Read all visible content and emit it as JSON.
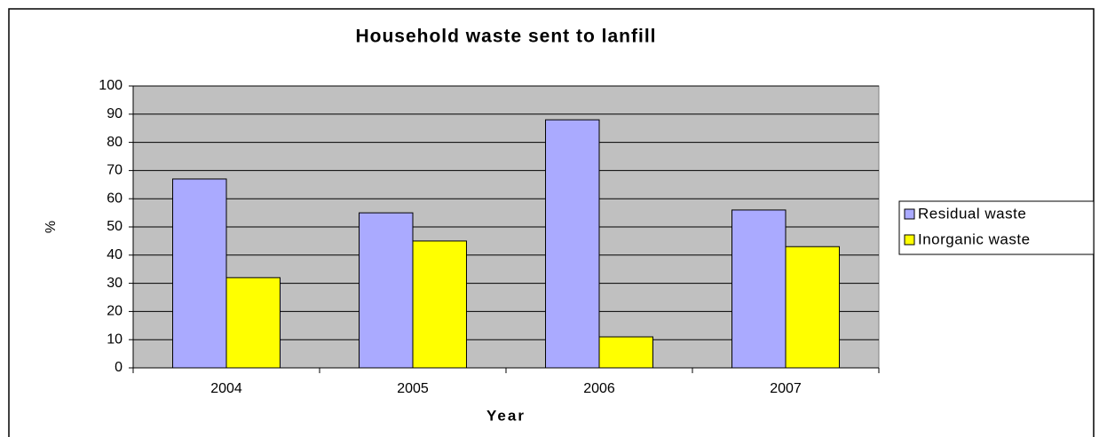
{
  "chart_data": {
    "type": "bar",
    "title": "Household waste sent to lanfill",
    "x_label": "Year",
    "y_label": "%",
    "categories": [
      "2004",
      "2005",
      "2006",
      "2007"
    ],
    "series": [
      {
        "name": "Residual waste",
        "color": "#aaaaff",
        "values": [
          67,
          55,
          88,
          56
        ]
      },
      {
        "name": "Inorganic waste",
        "color": "#ffff00",
        "values": [
          32,
          45,
          11,
          43
        ]
      }
    ],
    "ylim": [
      0,
      100
    ],
    "yticks": [
      0,
      10,
      20,
      30,
      40,
      50,
      60,
      70,
      80,
      90,
      100
    ],
    "grid": true,
    "legend": "right"
  }
}
